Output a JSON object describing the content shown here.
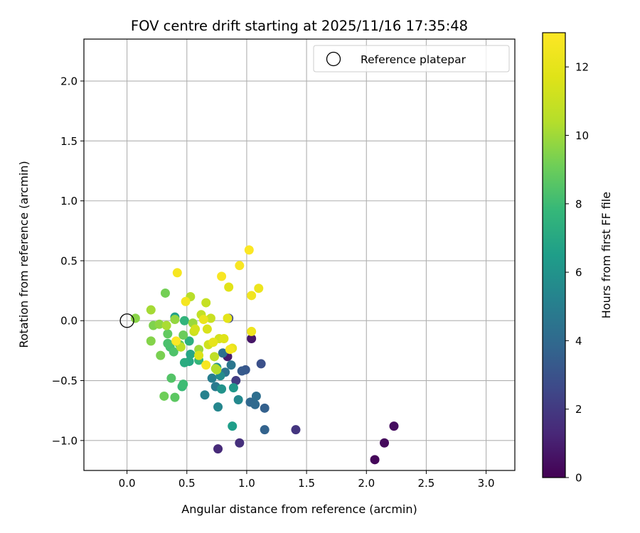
{
  "chart_data": {
    "type": "scatter",
    "title": "FOV centre drift starting at 2025/11/16 17:35:48",
    "xlabel": "Angular distance from reference (arcmin)",
    "ylabel": "Rotation from reference (arcmin)",
    "xlim": [
      -0.36,
      3.24
    ],
    "ylim": [
      -1.25,
      2.35
    ],
    "xticks": [
      0.0,
      0.5,
      1.0,
      1.5,
      2.0,
      2.5,
      3.0
    ],
    "xtick_labels": [
      "0.0",
      "0.5",
      "1.0",
      "1.5",
      "2.0",
      "2.5",
      "3.0"
    ],
    "yticks": [
      -1.0,
      -0.5,
      0.0,
      0.5,
      1.0,
      1.5,
      2.0
    ],
    "ytick_labels": [
      "−1.0",
      "−0.5",
      "0.0",
      "0.5",
      "1.0",
      "1.5",
      "2.0"
    ],
    "grid": true,
    "legend": {
      "position": "top-right",
      "entries": [
        {
          "label": "Reference platepar",
          "marker": "open-circle"
        }
      ]
    },
    "reference": {
      "x": 0.0,
      "y": 0.0
    },
    "colorbar": {
      "label": "Hours from first FF file",
      "range": [
        0,
        13
      ],
      "ticks": [
        0,
        2,
        4,
        6,
        8,
        10,
        12
      ],
      "tick_labels": [
        "0",
        "2",
        "4",
        "6",
        "8",
        "10",
        "12"
      ],
      "colormap": "viridis"
    },
    "series": [
      {
        "name": "FOV centre",
        "points": [
          {
            "x": 2.07,
            "y": -1.16,
            "h": 0.2
          },
          {
            "x": 2.15,
            "y": -1.02,
            "h": 0.3
          },
          {
            "x": 2.23,
            "y": -0.88,
            "h": 0.4
          },
          {
            "x": 1.04,
            "y": -0.15,
            "h": 0.7
          },
          {
            "x": 0.84,
            "y": -0.3,
            "h": 0.9
          },
          {
            "x": 0.76,
            "y": -1.07,
            "h": 1.4
          },
          {
            "x": 0.94,
            "y": -1.02,
            "h": 1.6
          },
          {
            "x": 1.41,
            "y": -0.91,
            "h": 1.8
          },
          {
            "x": 0.91,
            "y": -0.5,
            "h": 2.1
          },
          {
            "x": 0.85,
            "y": 0.02,
            "h": 2.5
          },
          {
            "x": 1.12,
            "y": -0.36,
            "h": 2.9
          },
          {
            "x": 0.99,
            "y": -0.41,
            "h": 3.2
          },
          {
            "x": 0.96,
            "y": -0.42,
            "h": 3.3
          },
          {
            "x": 1.15,
            "y": -0.73,
            "h": 3.6
          },
          {
            "x": 1.15,
            "y": -0.91,
            "h": 3.7
          },
          {
            "x": 1.03,
            "y": -0.68,
            "h": 3.9
          },
          {
            "x": 1.07,
            "y": -0.7,
            "h": 4.0
          },
          {
            "x": 1.08,
            "y": -0.63,
            "h": 4.2
          },
          {
            "x": 0.8,
            "y": -0.27,
            "h": 4.3
          },
          {
            "x": 0.82,
            "y": -0.43,
            "h": 4.5
          },
          {
            "x": 0.87,
            "y": -0.37,
            "h": 4.6
          },
          {
            "x": 0.74,
            "y": -0.55,
            "h": 4.8
          },
          {
            "x": 0.71,
            "y": -0.48,
            "h": 5.0
          },
          {
            "x": 0.65,
            "y": -0.62,
            "h": 5.2
          },
          {
            "x": 0.76,
            "y": -0.72,
            "h": 5.4
          },
          {
            "x": 0.93,
            "y": -0.66,
            "h": 5.5
          },
          {
            "x": 0.78,
            "y": -0.46,
            "h": 5.7
          },
          {
            "x": 0.75,
            "y": -0.39,
            "h": 5.9
          },
          {
            "x": 0.79,
            "y": -0.57,
            "h": 6.0
          },
          {
            "x": 0.89,
            "y": -0.56,
            "h": 6.2
          },
          {
            "x": 0.88,
            "y": -0.88,
            "h": 6.5
          },
          {
            "x": 0.4,
            "y": 0.03,
            "h": 6.7
          },
          {
            "x": 0.53,
            "y": -0.28,
            "h": 6.9
          },
          {
            "x": 0.52,
            "y": -0.34,
            "h": 7.0
          },
          {
            "x": 0.48,
            "y": -0.35,
            "h": 7.2
          },
          {
            "x": 0.52,
            "y": -0.17,
            "h": 7.4
          },
          {
            "x": 0.48,
            "y": 0.0,
            "h": 7.6
          },
          {
            "x": 0.6,
            "y": -0.33,
            "h": 7.7
          },
          {
            "x": 0.46,
            "y": -0.55,
            "h": 7.9
          },
          {
            "x": 0.47,
            "y": -0.53,
            "h": 8.0
          },
          {
            "x": 0.36,
            "y": -0.22,
            "h": 8.2
          },
          {
            "x": 0.34,
            "y": -0.19,
            "h": 8.3
          },
          {
            "x": 0.39,
            "y": -0.26,
            "h": 8.4
          },
          {
            "x": 0.37,
            "y": -0.48,
            "h": 8.5
          },
          {
            "x": 0.4,
            "y": -0.64,
            "h": 8.7
          },
          {
            "x": 0.34,
            "y": -0.11,
            "h": 8.8
          },
          {
            "x": 0.44,
            "y": -0.2,
            "h": 8.9
          },
          {
            "x": 0.47,
            "y": -0.12,
            "h": 9.0
          },
          {
            "x": 0.31,
            "y": -0.63,
            "h": 9.1
          },
          {
            "x": 0.32,
            "y": 0.23,
            "h": 9.2
          },
          {
            "x": 0.28,
            "y": -0.29,
            "h": 9.3
          },
          {
            "x": 0.22,
            "y": -0.04,
            "h": 9.4
          },
          {
            "x": 0.2,
            "y": -0.17,
            "h": 9.5
          },
          {
            "x": 0.07,
            "y": 0.02,
            "h": 9.6
          },
          {
            "x": 0.27,
            "y": -0.03,
            "h": 9.7
          },
          {
            "x": 0.4,
            "y": 0.01,
            "h": 9.8
          },
          {
            "x": 0.55,
            "y": -0.02,
            "h": 9.9
          },
          {
            "x": 0.6,
            "y": -0.24,
            "h": 10.0
          },
          {
            "x": 0.2,
            "y": 0.09,
            "h": 10.1
          },
          {
            "x": 0.33,
            "y": -0.04,
            "h": 10.2
          },
          {
            "x": 0.74,
            "y": -0.4,
            "h": 10.3
          },
          {
            "x": 0.75,
            "y": -0.41,
            "h": 10.4
          },
          {
            "x": 0.53,
            "y": 0.2,
            "h": 10.5
          },
          {
            "x": 0.45,
            "y": -0.22,
            "h": 10.6
          },
          {
            "x": 0.73,
            "y": -0.3,
            "h": 10.7
          },
          {
            "x": 0.62,
            "y": 0.05,
            "h": 10.8
          },
          {
            "x": 0.66,
            "y": 0.15,
            "h": 10.9
          },
          {
            "x": 0.7,
            "y": 0.02,
            "h": 11.0
          },
          {
            "x": 0.56,
            "y": -0.09,
            "h": 11.1
          },
          {
            "x": 0.68,
            "y": -0.2,
            "h": 11.2
          },
          {
            "x": 0.77,
            "y": -0.15,
            "h": 11.3
          },
          {
            "x": 0.57,
            "y": -0.07,
            "h": 11.4
          },
          {
            "x": 0.67,
            "y": -0.07,
            "h": 11.5
          },
          {
            "x": 0.6,
            "y": -0.29,
            "h": 11.6
          },
          {
            "x": 0.81,
            "y": -0.15,
            "h": 11.7
          },
          {
            "x": 0.85,
            "y": 0.28,
            "h": 11.8
          },
          {
            "x": 0.84,
            "y": 0.02,
            "h": 11.9
          },
          {
            "x": 0.72,
            "y": -0.18,
            "h": 12.0
          },
          {
            "x": 0.88,
            "y": -0.23,
            "h": 12.1
          },
          {
            "x": 0.64,
            "y": 0.01,
            "h": 12.2
          },
          {
            "x": 1.1,
            "y": 0.27,
            "h": 12.3
          },
          {
            "x": 1.04,
            "y": -0.09,
            "h": 12.4
          },
          {
            "x": 1.04,
            "y": 0.21,
            "h": 12.5
          },
          {
            "x": 0.86,
            "y": -0.24,
            "h": 12.6
          },
          {
            "x": 0.49,
            "y": 0.16,
            "h": 12.6
          },
          {
            "x": 0.66,
            "y": -0.37,
            "h": 12.7
          },
          {
            "x": 0.42,
            "y": 0.4,
            "h": 12.7
          },
          {
            "x": 0.79,
            "y": 0.37,
            "h": 12.8
          },
          {
            "x": 0.94,
            "y": 0.46,
            "h": 12.8
          },
          {
            "x": 1.02,
            "y": 0.59,
            "h": 12.9
          },
          {
            "x": 0.41,
            "y": -0.17,
            "h": 12.9
          }
        ]
      }
    ]
  }
}
